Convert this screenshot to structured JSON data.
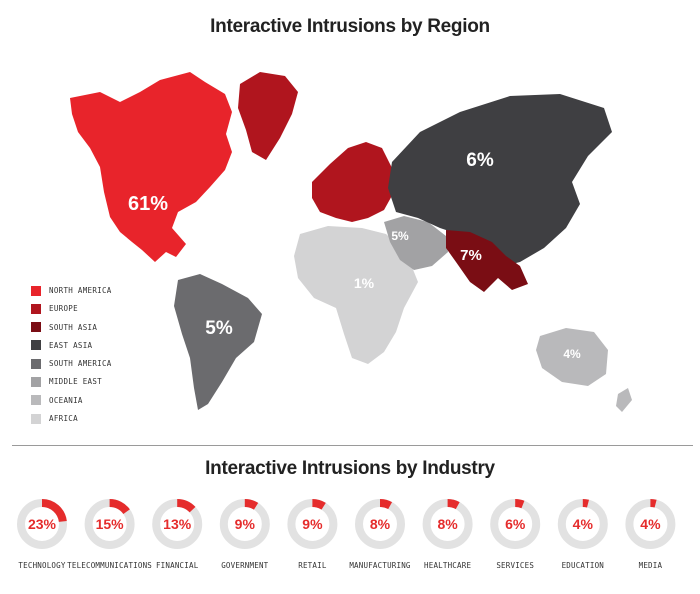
{
  "chart_data": [
    {
      "type": "map",
      "title": "Interactive Intrusions by Region",
      "legend_position": "bottom-left",
      "regions": [
        {
          "name": "NORTH AMERICA",
          "value": "61%",
          "color": "#e8242b"
        },
        {
          "name": "EUROPE",
          "value": "",
          "color": "#b0151e"
        },
        {
          "name": "SOUTH ASIA",
          "value": "7%",
          "color": "#7a0d14"
        },
        {
          "name": "EAST ASIA",
          "value": "6%",
          "color": "#3f3f42"
        },
        {
          "name": "SOUTH AMERICA",
          "value": "5%",
          "color": "#6b6b6e"
        },
        {
          "name": "MIDDLE EAST",
          "value": "5%",
          "color": "#a2a2a4"
        },
        {
          "name": "OCEANIA",
          "value": "4%",
          "color": "#b9b9bb"
        },
        {
          "name": "AFRICA",
          "value": "1%",
          "color": "#d3d3d4"
        }
      ]
    },
    {
      "type": "donut",
      "title": "Interactive Intrusions by Industry",
      "accent_color": "#e52c2c",
      "track_color": "#e2e2e2",
      "categories": [
        "TECHNOLOGY",
        "TELECOMMUNICATIONS",
        "FINANCIAL",
        "GOVERNMENT",
        "RETAIL",
        "MANUFACTURING",
        "HEALTHCARE",
        "SERVICES",
        "EDUCATION",
        "MEDIA"
      ],
      "values": [
        23,
        15,
        13,
        9,
        9,
        8,
        8,
        6,
        4,
        4
      ],
      "labels": [
        "23%",
        "15%",
        "13%",
        "9%",
        "9%",
        "8%",
        "8%",
        "6%",
        "4%",
        "4%"
      ]
    }
  ]
}
